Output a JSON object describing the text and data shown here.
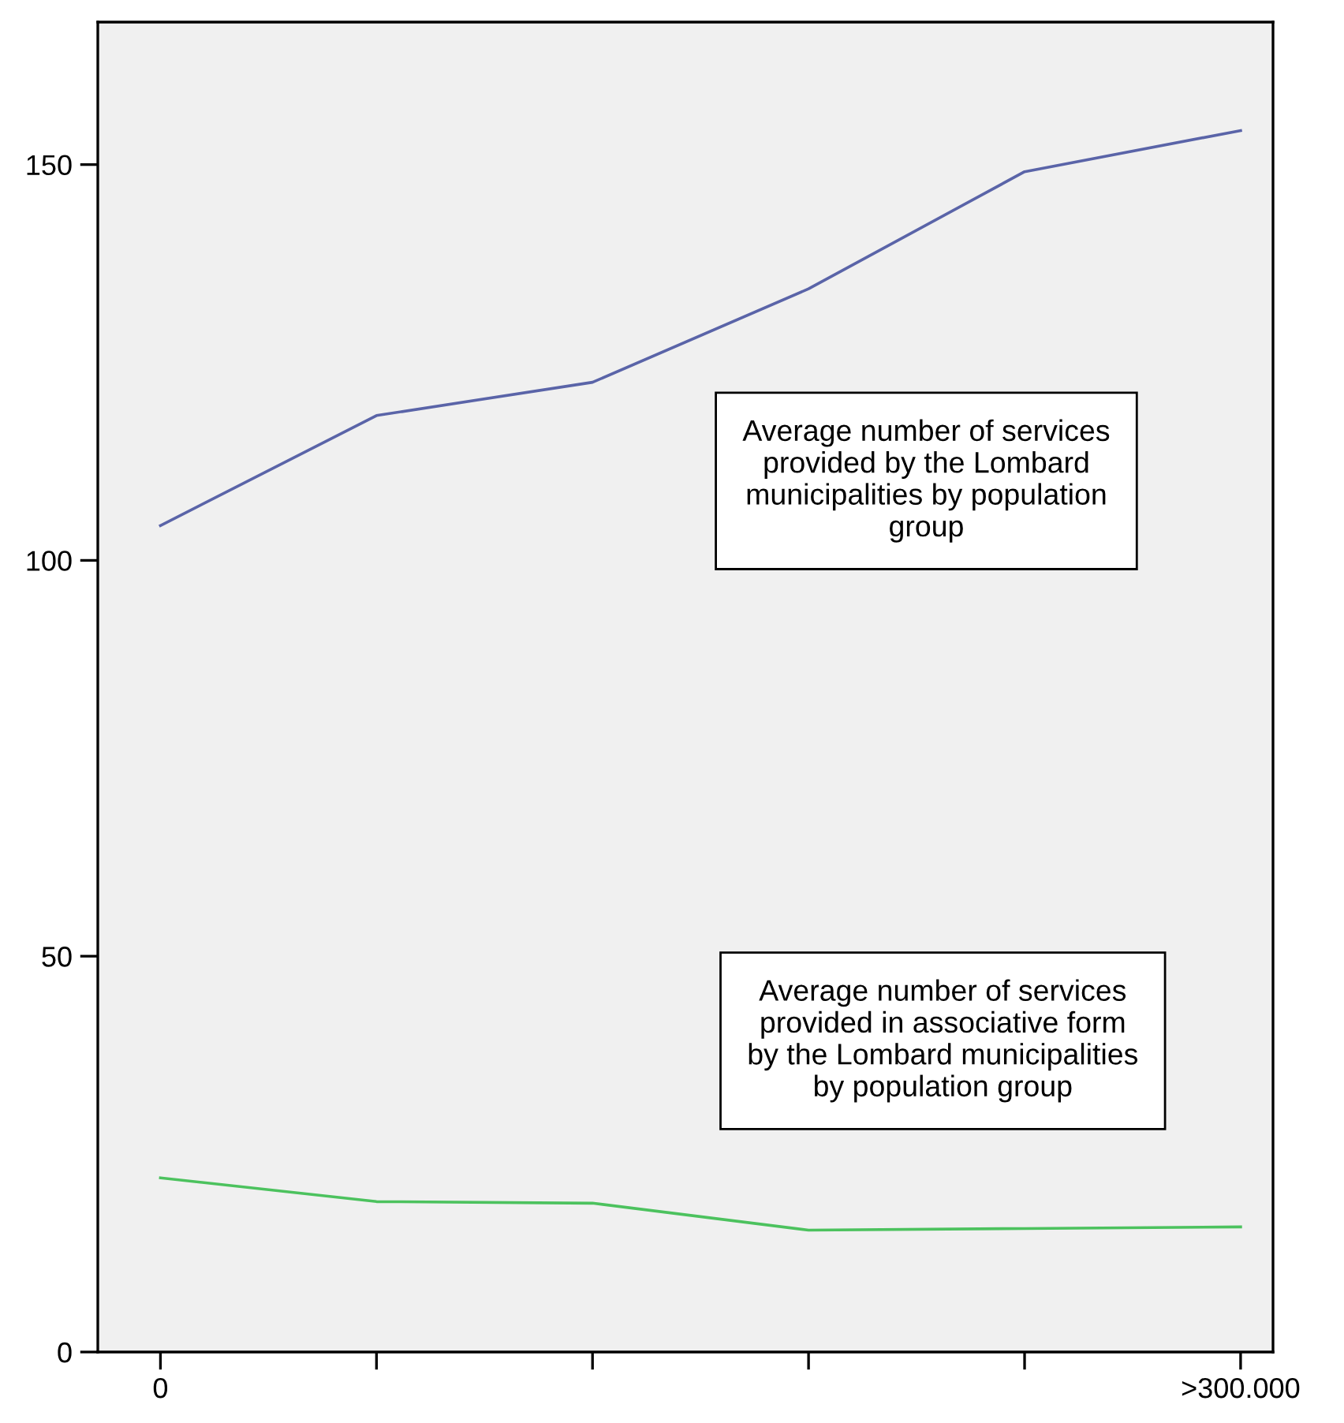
{
  "chart_data": {
    "type": "line",
    "categories": [
      "0",
      null,
      null,
      null,
      null,
      ">300.000"
    ],
    "series": [
      {
        "color": "#5a64a8",
        "values": [
          104.4,
          118.3,
          122.5,
          134.3,
          149.1,
          154.3
        ]
      },
      {
        "color": "#4cc25e",
        "values": [
          22.0,
          19.0,
          18.8,
          15.4,
          15.6,
          15.8
        ]
      }
    ],
    "ylim": [
      0,
      168
    ],
    "yticks": [
      0,
      50,
      100,
      150
    ],
    "grid": false,
    "marker": "none",
    "line_style": "solid",
    "annotations": [
      "Average number of services\nprovided by the Lombard\nmunicipalities by population\ngroup",
      "Average number of services\nprovided in associative form\nby the Lombard municipalities\nby population group"
    ]
  }
}
